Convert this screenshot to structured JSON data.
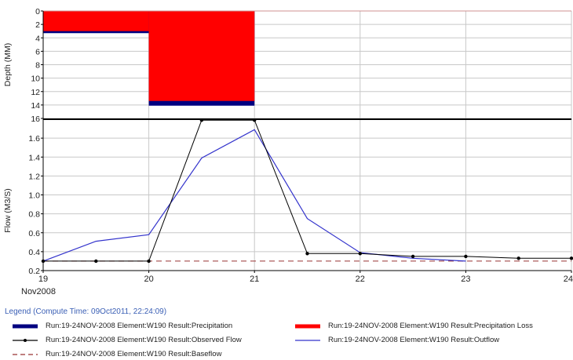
{
  "chart_data": [
    {
      "type": "bar",
      "panel": "top",
      "ylabel": "Depth (MM)",
      "y_inverted": true,
      "ylim": [
        0,
        16
      ],
      "yticks": [
        "0",
        "2",
        "4",
        "6",
        "8",
        "10",
        "12",
        "14",
        "16"
      ],
      "grid": true,
      "series": [
        {
          "name": "Run:19-24NOV-2008 Element:W190 Result:Precipitation Loss",
          "color": "#ff0000",
          "intervals": [
            {
              "x_start": 19,
              "x_end": 20,
              "value": 3.0
            },
            {
              "x_start": 20,
              "x_end": 21,
              "value": 13.4
            }
          ]
        },
        {
          "name": "Run:19-24NOV-2008 Element:W190 Result:Precipitation",
          "color": "#000080",
          "intervals": [
            {
              "x_start": 19,
              "x_end": 20,
              "value": 3.3
            },
            {
              "x_start": 20,
              "x_end": 21,
              "value": 14.1
            }
          ]
        }
      ]
    },
    {
      "type": "line",
      "panel": "bottom",
      "ylabel": "Flow (M3/S)",
      "ylim": [
        0.2,
        1.8
      ],
      "yticks": [
        "0.2",
        "0.4",
        "0.6",
        "0.8",
        "1.0",
        "1.2",
        "1.4",
        "1.6"
      ],
      "xlim": [
        19,
        24
      ],
      "xticks": [
        "19",
        "20",
        "21",
        "22",
        "23",
        "24"
      ],
      "xsub": "Nov2008",
      "grid": true,
      "series": [
        {
          "name": "Run:19-24NOV-2008 Element:W190 Result:Observed Flow",
          "color": "#000000",
          "style": "line-markers",
          "x": [
            19,
            19.5,
            20,
            20.5,
            21,
            21.5,
            22,
            22.5,
            23,
            23.5,
            24
          ],
          "y": [
            0.3,
            0.3,
            0.3,
            1.79,
            1.79,
            0.38,
            0.38,
            0.35,
            0.35,
            0.33,
            0.33
          ]
        },
        {
          "name": "Run:19-24NOV-2008 Element:W190 Result:Outflow",
          "color": "#3333cc",
          "style": "line",
          "x": [
            19,
            19.5,
            20,
            20.5,
            21,
            21.5,
            22,
            22.5,
            23
          ],
          "y": [
            0.3,
            0.51,
            0.58,
            1.39,
            1.69,
            0.75,
            0.39,
            0.33,
            0.3
          ]
        },
        {
          "name": "Run:19-24NOV-2008 Element:W190 Result:Baseflow",
          "color": "#993333",
          "style": "dashed",
          "x": [
            19,
            24
          ],
          "y": [
            0.3,
            0.3
          ]
        }
      ]
    }
  ],
  "legend": {
    "title": "Legend (Compute Time: 09Oct2011, 22:24:09)",
    "items": [
      {
        "label": "Run:19-24NOV-2008 Element:W190 Result:Precipitation",
        "style": "thick",
        "color": "#000080"
      },
      {
        "label": "Run:19-24NOV-2008 Element:W190 Result:Precipitation Loss",
        "style": "thick",
        "color": "#ff0000"
      },
      {
        "label": "Run:19-24NOV-2008 Element:W190 Result:Observed Flow",
        "style": "line-markers",
        "color": "#000000"
      },
      {
        "label": "Run:19-24NOV-2008 Element:W190 Result:Outflow",
        "style": "line",
        "color": "#3333cc"
      },
      {
        "label": "Run:19-24NOV-2008 Element:W190 Result:Baseflow",
        "style": "dashed",
        "color": "#993333"
      }
    ]
  }
}
